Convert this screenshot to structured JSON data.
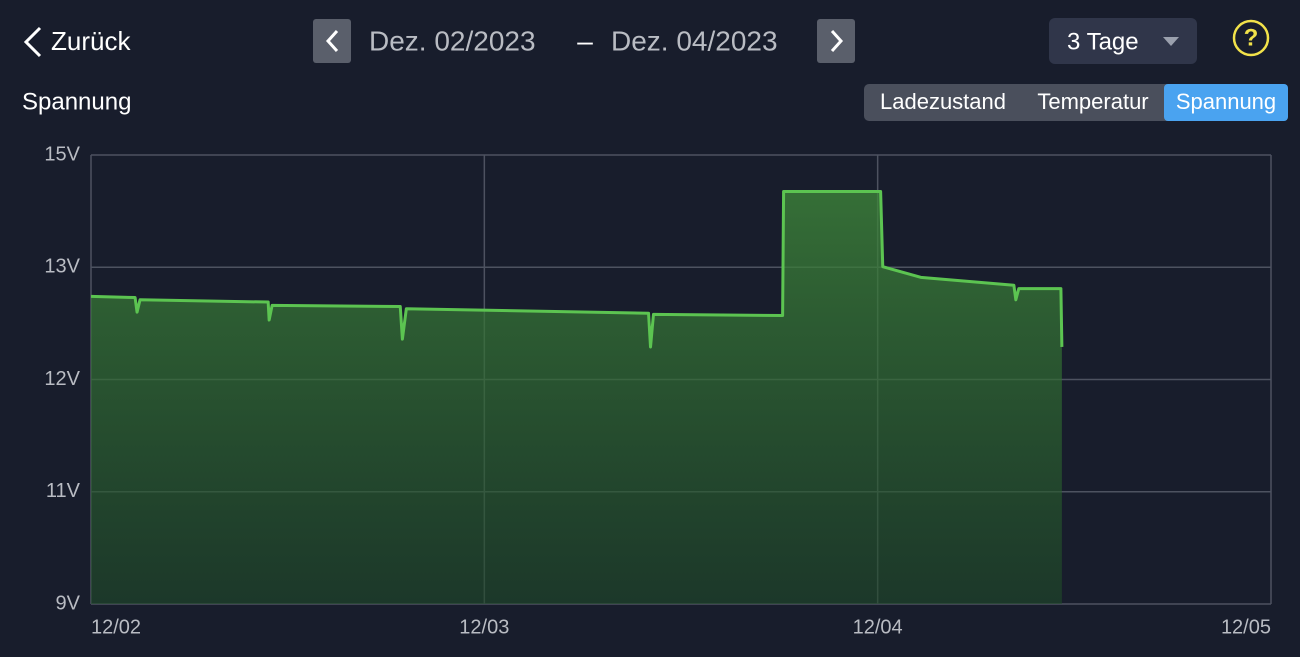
{
  "header": {
    "back": "Zurück",
    "date_from": "Dez. 02/2023",
    "separator": "–",
    "date_to": "Dez. 04/2023",
    "period": "3 Tage",
    "help": "?"
  },
  "tabs": {
    "items": [
      "Ladezustand",
      "Temperatur",
      "Spannung"
    ],
    "active": 2
  },
  "chart_data": {
    "type": "line",
    "title": "Spannung",
    "color": "#5cc451",
    "x": [
      0,
      2.69,
      2.81,
      2.99,
      10.81,
      10.87,
      11.05,
      18.87,
      19.0,
      19.24,
      34.02,
      34.14,
      34.32,
      42.2,
      42.26,
      48.18,
      48.31,
      50.63,
      56.31,
      56.43,
      56.61,
      59.18,
      59.24
    ],
    "values": [
      12.74,
      12.73,
      12.6,
      12.71,
      12.69,
      12.53,
      12.66,
      12.65,
      12.36,
      12.63,
      12.59,
      12.29,
      12.58,
      12.57,
      14.35,
      14.35,
      13.01,
      12.91,
      12.84,
      12.71,
      12.81,
      12.81,
      12.29
    ],
    "xlim": [
      0,
      72
    ],
    "xticks": [
      {
        "value": 0,
        "label": "12/02"
      },
      {
        "value": 24,
        "label": "12/03"
      },
      {
        "value": 48,
        "label": "12/04"
      },
      {
        "value": 72,
        "label": "12/05"
      }
    ],
    "ylim": [
      9,
      15
    ],
    "yticks": [
      {
        "value": 15,
        "label": "15V"
      },
      {
        "value": 13,
        "label": "13V"
      },
      {
        "value": 12,
        "label": "12V"
      },
      {
        "value": 11,
        "label": "11V"
      },
      {
        "value": 9,
        "label": "9V"
      }
    ],
    "grid": true
  }
}
